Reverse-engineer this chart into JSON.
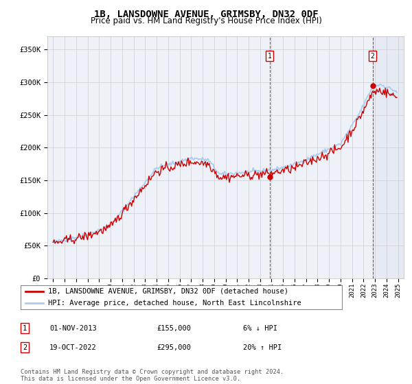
{
  "title": "1B, LANSDOWNE AVENUE, GRIMSBY, DN32 0DF",
  "subtitle": "Price paid vs. HM Land Registry's House Price Index (HPI)",
  "ylabel_ticks": [
    "£0",
    "£50K",
    "£100K",
    "£150K",
    "£200K",
    "£250K",
    "£300K",
    "£350K"
  ],
  "ylabel_values": [
    0,
    50000,
    100000,
    150000,
    200000,
    250000,
    300000,
    350000
  ],
  "ylim": [
    0,
    370000
  ],
  "xlim_start": 1994.5,
  "xlim_end": 2025.5,
  "legend_line1": "1B, LANSDOWNE AVENUE, GRIMSBY, DN32 0DF (detached house)",
  "legend_line2": "HPI: Average price, detached house, North East Lincolnshire",
  "transaction1_date": "01-NOV-2013",
  "transaction1_price": "£155,000",
  "transaction1_hpi": "6% ↓ HPI",
  "transaction2_date": "19-OCT-2022",
  "transaction2_price": "£295,000",
  "transaction2_hpi": "20% ↑ HPI",
  "footer": "Contains HM Land Registry data © Crown copyright and database right 2024.\nThis data is licensed under the Open Government Licence v3.0.",
  "sale1_x": 2013.83,
  "sale1_y": 155000,
  "sale2_x": 2022.79,
  "sale2_y": 295000,
  "hpi_color": "#aaccee",
  "price_color": "#cc0000",
  "background_color": "#eef2f8",
  "grid_color": "#cccccc",
  "title_fontsize": 10,
  "subtitle_fontsize": 8.5,
  "tick_fontsize": 7.5,
  "legend_fontsize": 8
}
